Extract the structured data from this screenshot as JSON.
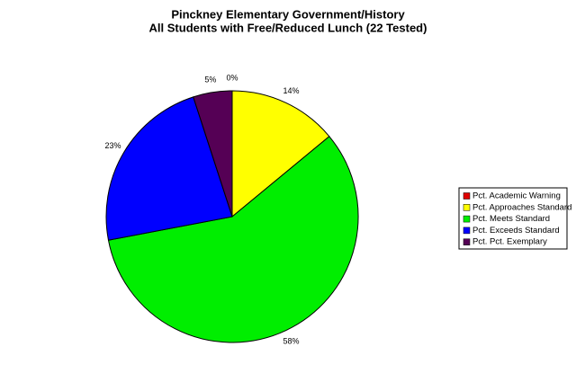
{
  "chart_data": {
    "type": "pie",
    "title": "Pinckney Elementary Government/History",
    "subtitle": "All Students with Free/Reduced Lunch (22 Tested)",
    "categories": [
      "Pct. Academic Warning",
      "Pct. Approaches Standard",
      "Pct. Meets Standard",
      "Pct. Exceeds Standard",
      "Pct. Pct. Exemplary"
    ],
    "values": [
      0,
      14,
      58,
      23,
      5
    ],
    "value_labels": [
      "0%",
      "14%",
      "58%",
      "23%",
      "5%"
    ],
    "colors": [
      "#e00000",
      "#ffff00",
      "#00ee00",
      "#0000ff",
      "#550055"
    ],
    "legend": "right"
  }
}
